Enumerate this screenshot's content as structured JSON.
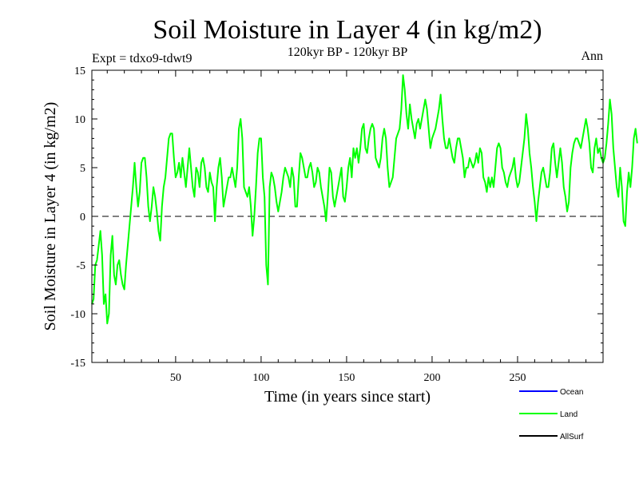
{
  "chart_data": {
    "type": "line",
    "title": "Soil Moisture in Layer 4 (in kg/m2)",
    "subtitle": "120kyr BP - 120kyr BP",
    "experiment_label": "Expt = tdxo9-tdwt9",
    "period_label": "Ann",
    "xlabel": "Time (in years since start)",
    "ylabel": "Soil Moisture in Layer 4 (in kg/m2)",
    "xlim": [
      1,
      300
    ],
    "ylim": [
      -15,
      15
    ],
    "x_ticks": [
      50,
      100,
      150,
      200,
      250
    ],
    "y_ticks": [
      -15,
      -10,
      -5,
      0,
      5,
      10,
      15
    ],
    "x_tick_labels": [
      "50",
      "100",
      "150",
      "200",
      "250"
    ],
    "y_tick_labels": [
      "-15",
      "-10",
      "-5",
      "0",
      "5",
      "10",
      "15"
    ],
    "zero_line": true,
    "legend": [
      {
        "name": "Ocean",
        "color": "#0000ff"
      },
      {
        "name": "Land",
        "color": "#00ff00"
      },
      {
        "name": "AllSurf",
        "color": "#000000"
      }
    ],
    "series": [
      {
        "name": "Land",
        "color": "#00ff00",
        "x_start": 1,
        "x_step": 1,
        "values": [
          -9,
          -8.5,
          -5,
          -4.5,
          -3,
          -1.5,
          -4,
          -9,
          -8,
          -11,
          -10,
          -4,
          -2,
          -6,
          -7,
          -5,
          -4.5,
          -6,
          -7,
          -7.5,
          -5,
          -3,
          -1,
          1,
          3,
          5.5,
          3,
          1,
          2.5,
          5.5,
          6,
          6,
          4,
          1,
          -0.5,
          1,
          3,
          2,
          0.5,
          -1.5,
          -2.5,
          1,
          3,
          4,
          6,
          8,
          8.5,
          8.5,
          6,
          4,
          4.5,
          5.5,
          4,
          6,
          4.5,
          3,
          5,
          7,
          5,
          3,
          2,
          5,
          4.5,
          3,
          5.5,
          6,
          5,
          3,
          2.5,
          4.5,
          3.5,
          3,
          -0.5,
          3,
          5,
          6,
          4,
          1,
          2,
          3,
          4,
          4,
          5,
          4,
          3,
          5,
          9,
          10,
          8,
          3,
          2.5,
          2,
          3,
          1,
          -2,
          0,
          3,
          6.5,
          8,
          8,
          4,
          2,
          -5,
          -7,
          3,
          4.5,
          4,
          3,
          1.5,
          0.5,
          1.5,
          2.5,
          4,
          5,
          4.5,
          4,
          3,
          5,
          4,
          1,
          1,
          4,
          6.5,
          6,
          5,
          4,
          4,
          5,
          5.5,
          4.5,
          3,
          3.5,
          5,
          4.5,
          3,
          2,
          1,
          -0.5,
          2,
          5,
          4.5,
          2,
          1,
          2,
          3,
          4,
          5,
          2,
          1.5,
          3,
          5,
          6,
          4,
          7,
          6,
          7,
          5.5,
          7,
          9,
          9.5,
          7,
          6.5,
          8,
          9,
          9.5,
          9,
          6,
          5.5,
          5,
          6,
          8,
          9,
          8,
          5,
          3,
          3.5,
          4,
          6,
          8,
          8.5,
          9,
          11,
          14.5,
          13,
          10.5,
          9,
          11.5,
          10,
          9,
          8,
          9.5,
          10,
          9,
          10,
          11,
          12,
          11,
          9,
          7,
          8,
          8.5,
          9,
          10,
          11,
          12.5,
          10,
          8,
          7,
          7,
          8,
          7,
          6,
          5.5,
          7,
          8,
          8,
          7,
          6,
          4,
          5,
          5,
          6,
          5.5,
          5,
          5.5,
          6.5,
          5.5,
          7,
          6.5,
          4,
          3.5,
          2.5,
          4,
          3,
          4,
          3,
          5,
          7,
          7.5,
          7,
          5,
          4.5,
          3.5,
          3,
          4,
          4.5,
          5,
          6,
          4,
          3,
          3.5,
          5,
          6.5,
          8,
          10.5,
          9,
          6.5,
          5,
          3,
          1.5,
          -0.5,
          1.5,
          3,
          4.5,
          5,
          4,
          3,
          3,
          4.5,
          7,
          7.5,
          5.5,
          4,
          5.5,
          7,
          5.5,
          3,
          2,
          0.5,
          1.5,
          5,
          6.5,
          7.5,
          8,
          8,
          7.5,
          7,
          8,
          9,
          10,
          9,
          7.5,
          5,
          4.5,
          7,
          8,
          6.5,
          7,
          6,
          5.5,
          6,
          7.5,
          9.5,
          12,
          10.5,
          7,
          5,
          3,
          2,
          5,
          3,
          -0.5,
          -1,
          2.5,
          4.5,
          3,
          5,
          8,
          9,
          7.5
        ]
      }
    ]
  }
}
